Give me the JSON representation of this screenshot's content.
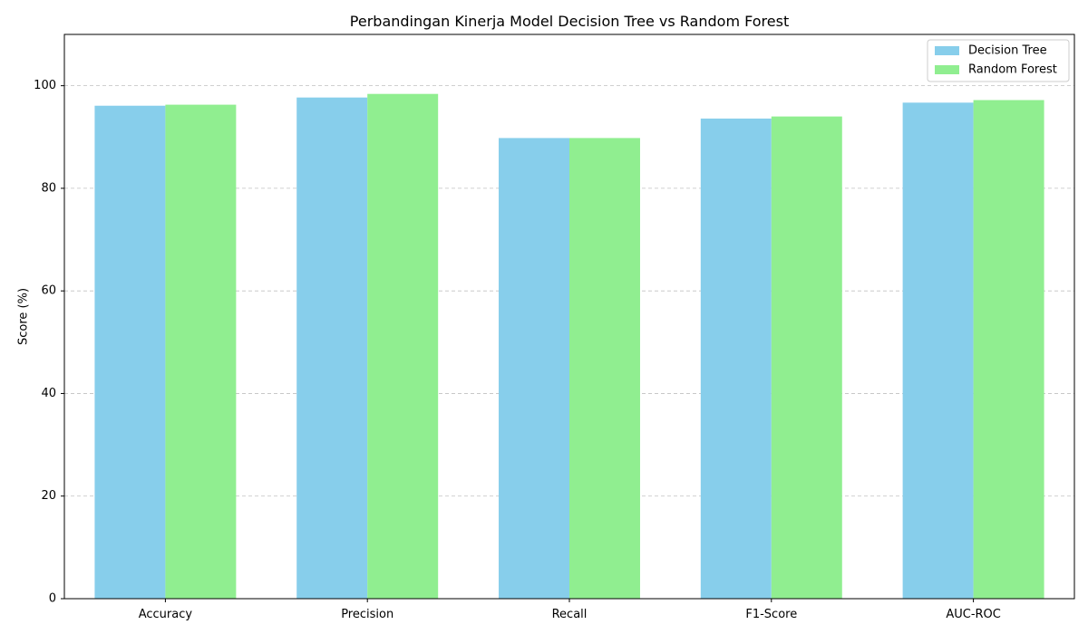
{
  "chart_data": {
    "type": "bar",
    "title": "Perbandingan Kinerja Model Decision Tree vs Random Forest",
    "xlabel": "",
    "ylabel": "Score (%)",
    "categories": [
      "Accuracy",
      "Precision",
      "Recall",
      "F1-Score",
      "AUC-ROC"
    ],
    "series": [
      {
        "name": "Decision Tree",
        "color": "#87ceeb",
        "values": [
          96.1,
          97.7,
          89.8,
          93.6,
          96.7
        ]
      },
      {
        "name": "Random Forest",
        "color": "#90ee90",
        "values": [
          96.3,
          98.4,
          89.8,
          94.0,
          97.2
        ]
      }
    ],
    "ylim": [
      0,
      110
    ],
    "yticks": [
      0,
      20,
      40,
      60,
      80,
      100
    ],
    "grid": "y-dashed",
    "legend": {
      "position": "top-right",
      "entries": [
        "Decision Tree",
        "Random Forest"
      ]
    }
  }
}
